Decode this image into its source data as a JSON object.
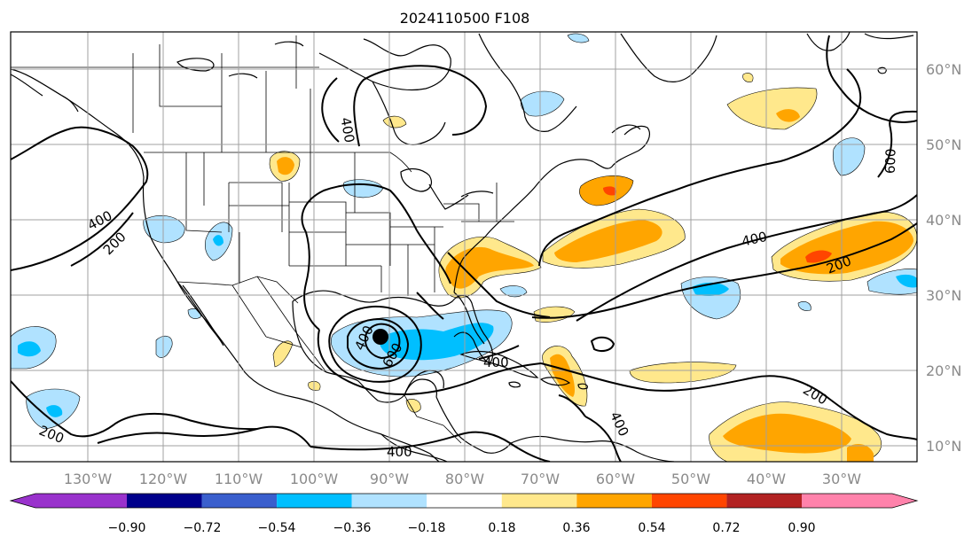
{
  "title": "2024110500 F108",
  "map": {
    "lon_labels": [
      "130°W",
      "120°W",
      "110°W",
      "100°W",
      "90°W",
      "80°W",
      "70°W",
      "60°W",
      "50°W",
      "40°W",
      "30°W"
    ],
    "lat_labels": [
      "60°N",
      "50°N",
      "40°N",
      "30°N",
      "20°N",
      "10°N"
    ],
    "contour_labels": [
      "400",
      "200",
      "400",
      "600",
      "200",
      "600",
      "400",
      "200",
      "400",
      "400",
      "200",
      "200",
      "400",
      "400",
      "400",
      "600"
    ],
    "marker": "storm-center-dot"
  },
  "colorbar": {
    "colors": [
      "#9932cc",
      "#00008b",
      "#3a5fcd",
      "#00bfff",
      "#b0e2ff",
      "#ffffff",
      "#ffe88c",
      "#ffa500",
      "#ff4500",
      "#b22222",
      "#ff82ab"
    ],
    "tick_labels": [
      "−0.90",
      "−0.72",
      "−0.54",
      "−0.36",
      "−0.18",
      "0.18",
      "0.36",
      "0.54",
      "0.72",
      "0.90"
    ],
    "extend": "both"
  }
}
